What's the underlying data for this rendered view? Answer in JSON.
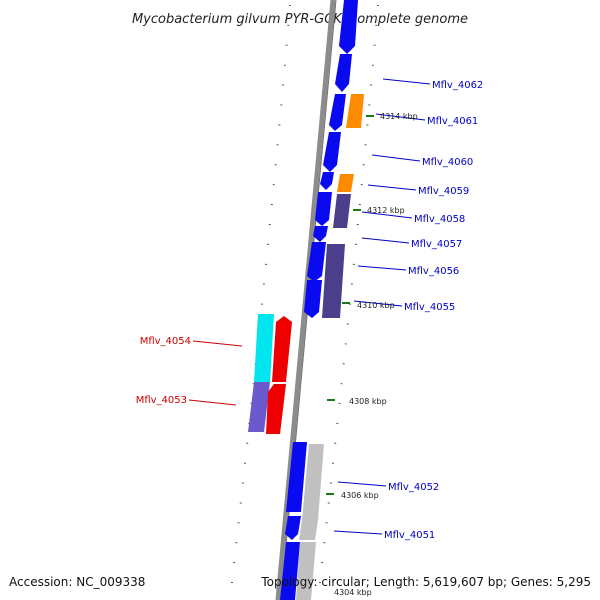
{
  "title": "Mycobacterium gilvum PYR-GCK, complete genome",
  "footer": {
    "accession": "Accession: NC_009338",
    "topology": "Topology: circular; Length: 5,619,607 bp; Genes: 5,295"
  },
  "colors": {
    "backbone": "#8c8c8c",
    "tick": "#1a7a1a",
    "gene_blue": "#0a0af0",
    "gene_orange": "#ff8c00",
    "gene_slate": "#4b3f8c",
    "gene_cyan": "#00e5ee",
    "gene_red": "#ee0000",
    "gene_lavender": "#6a5acd",
    "gene_gray": "#c0c0c0",
    "label_blue": "#0000c8",
    "label_red": "#cc0000"
  },
  "scale": {
    "kbp_unit": "kbp",
    "ticks": [
      {
        "text": "4314 kbp"
      },
      {
        "text": "4312 kbp"
      },
      {
        "text": "4310 kbp"
      },
      {
        "text": "4308 kbp"
      },
      {
        "text": "4306 kbp"
      },
      {
        "text": "4304 kbp"
      }
    ]
  },
  "genes": [
    {
      "label": "Mflv_4062",
      "strand": "plus"
    },
    {
      "label": "Mflv_4061",
      "strand": "plus"
    },
    {
      "label": "Mflv_4060",
      "strand": "plus"
    },
    {
      "label": "Mflv_4059",
      "strand": "plus"
    },
    {
      "label": "Mflv_4058",
      "strand": "plus"
    },
    {
      "label": "Mflv_4057",
      "strand": "plus"
    },
    {
      "label": "Mflv_4056",
      "strand": "plus"
    },
    {
      "label": "Mflv_4055",
      "strand": "plus"
    },
    {
      "label": "Mflv_4054",
      "strand": "minus"
    },
    {
      "label": "Mflv_4053",
      "strand": "minus"
    },
    {
      "label": "Mflv_4052",
      "strand": "plus"
    },
    {
      "label": "Mflv_4051",
      "strand": "plus"
    }
  ]
}
